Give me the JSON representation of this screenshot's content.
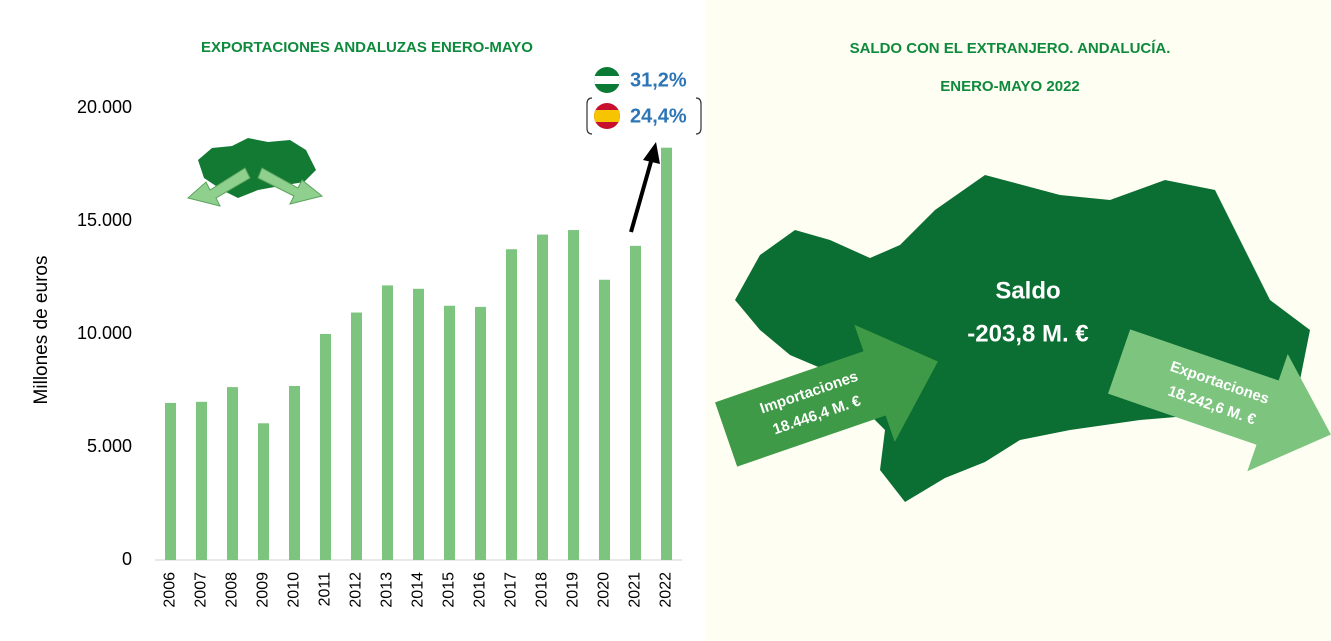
{
  "chart_data": {
    "type": "bar",
    "title": "EXPORTACIONES ANDALUZAS ENERO-MAYO",
    "y_label": "Millones de euros",
    "categories": [
      "2006",
      "2007",
      "2008",
      "2009",
      "2010",
      "2011",
      "2012",
      "2013",
      "2014",
      "2015",
      "2016",
      "2017",
      "2018",
      "2019",
      "2020",
      "2021",
      "2022"
    ],
    "values": [
      6950,
      7000,
      7650,
      6050,
      7700,
      10000,
      10950,
      12150,
      12000,
      11250,
      11200,
      13750,
      14400,
      14600,
      12400,
      13900,
      18243
    ],
    "color": "#7dc47f",
    "ylim": [
      0,
      20000
    ],
    "yticks": [
      0,
      {
        "value": 5000,
        "label": "5.000"
      },
      {
        "value": 10000,
        "label": "10.000"
      },
      {
        "value": 15000,
        "label": "15.000"
      },
      {
        "value": 20000,
        "label": "20.000"
      }
    ],
    "grid": false,
    "annotations": [
      "31,2%",
      "24,4%"
    ]
  },
  "saldo": {
    "title_lines": [
      "SALDO CON EL EXTRANJERO. ANDALUCÍA.",
      "ENERO-MAYO 2022"
    ],
    "label": "Saldo",
    "value": "-203,8 M. €",
    "imports": {
      "label": "Importaciones",
      "value": "18.446,4 M. €"
    },
    "exports": {
      "label": "Exportaciones",
      "value": "18.242,6 M. €"
    }
  }
}
